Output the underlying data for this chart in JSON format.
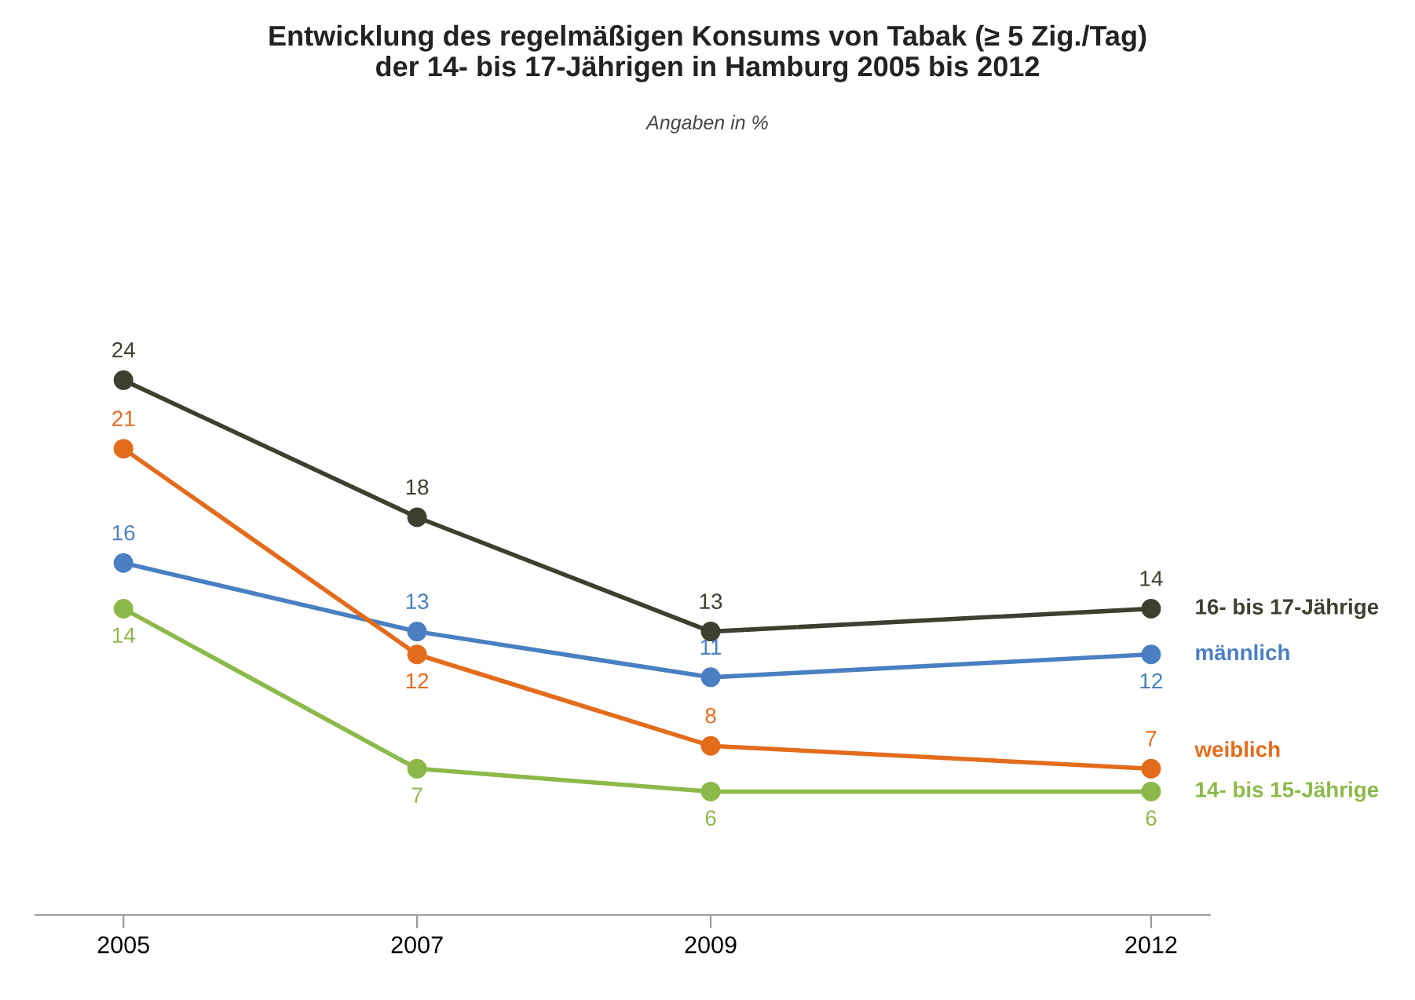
{
  "chart_data": {
    "type": "line",
    "title": "Entwicklung des regelmäßigen Konsums von Tabak (≥ 5 Zig./Tag)\nder 14- bis 17-Jährigen in Hamburg 2005 bis 2012",
    "subtitle": "Angaben in %",
    "x": [
      2005,
      2007,
      2009,
      2012
    ],
    "xlim": [
      2004.4,
      2012.4
    ],
    "xticks": [
      2005,
      2007,
      2009,
      2012
    ],
    "tick_labels": "x",
    "grid": false,
    "legend": false,
    "marker": "circle",
    "line_style": "solid",
    "data_labels": true,
    "series": [
      {
        "name": "16- bis 17-Jährige",
        "color": "#3f3f2f",
        "values": [
          24,
          18,
          13,
          14
        ]
      },
      {
        "name": "männlich",
        "color": "#4a7fc1",
        "values": [
          16,
          13,
          11,
          12
        ]
      },
      {
        "name": "weiblich",
        "color": "#e36c1c",
        "values": [
          21,
          12,
          8,
          7
        ]
      },
      {
        "name": "14- bis 15-Jährige",
        "color": "#8db84a",
        "values": [
          14,
          7,
          6,
          6
        ]
      }
    ]
  }
}
